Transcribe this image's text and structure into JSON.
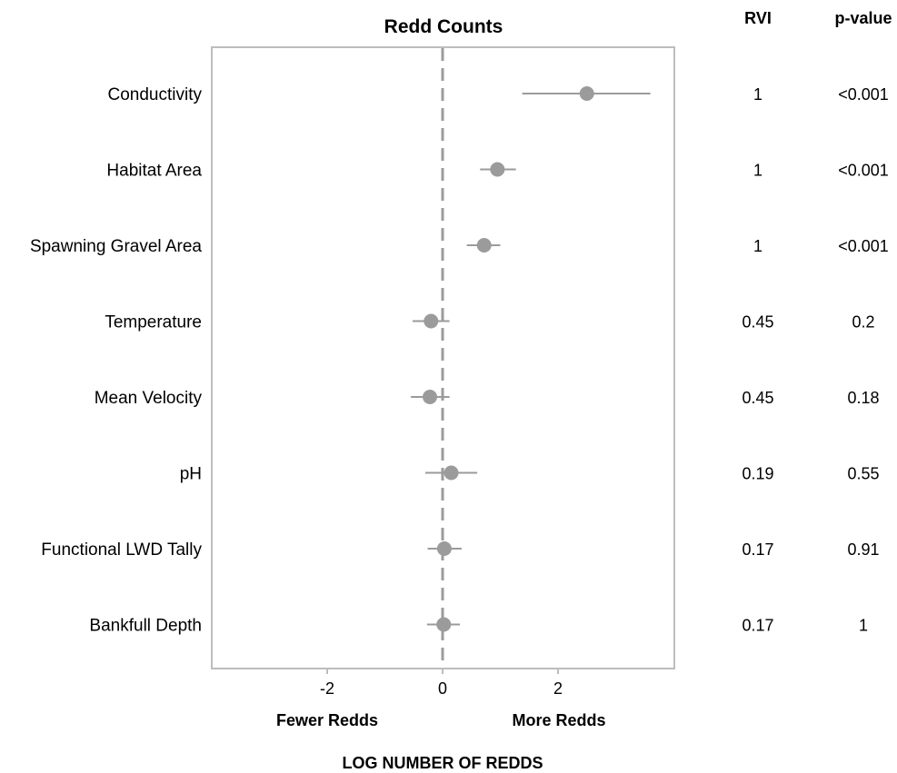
{
  "chart_data": {
    "type": "forest",
    "title": "Redd Counts",
    "xlabel": "LOG NUMBER OF REDDS",
    "xlim": [
      -3.9,
      4.0
    ],
    "xticks": [
      -2,
      0,
      2
    ],
    "xtick_labels": [
      "-2",
      "0",
      "2"
    ],
    "reference_line": 0,
    "direction_labels": {
      "left": "Fewer Redds",
      "right": "More Redds"
    },
    "columns": {
      "rvi": "RVI",
      "pvalue": "p-value"
    },
    "rows": [
      {
        "label": "Conductivity",
        "estimate": 2.5,
        "lower": 1.38,
        "upper": 3.6,
        "rvi": "1",
        "pvalue": "<0.001"
      },
      {
        "label": "Habitat Area",
        "estimate": 0.95,
        "lower": 0.65,
        "upper": 1.27,
        "rvi": "1",
        "pvalue": "<0.001"
      },
      {
        "label": "Spawning Gravel Area",
        "estimate": 0.72,
        "lower": 0.42,
        "upper": 1.0,
        "rvi": "1",
        "pvalue": "<0.001"
      },
      {
        "label": "Temperature",
        "estimate": -0.2,
        "lower": -0.52,
        "upper": 0.12,
        "rvi": "0.45",
        "pvalue": "0.2"
      },
      {
        "label": "Mean Velocity",
        "estimate": -0.22,
        "lower": -0.55,
        "upper": 0.12,
        "rvi": "0.45",
        "pvalue": "0.18"
      },
      {
        "label": "pH",
        "estimate": 0.15,
        "lower": -0.3,
        "upper": 0.6,
        "rvi": "0.19",
        "pvalue": "0.55"
      },
      {
        "label": "Functional LWD Tally",
        "estimate": 0.03,
        "lower": -0.26,
        "upper": 0.33,
        "rvi": "0.17",
        "pvalue": "0.91"
      },
      {
        "label": "Bankfull Depth",
        "estimate": 0.02,
        "lower": -0.27,
        "upper": 0.3,
        "rvi": "0.17",
        "pvalue": "1"
      }
    ],
    "colors": {
      "marker": "#9b9b9b",
      "frame": "#bdbdbd",
      "reference": "#9b9b9b"
    }
  }
}
